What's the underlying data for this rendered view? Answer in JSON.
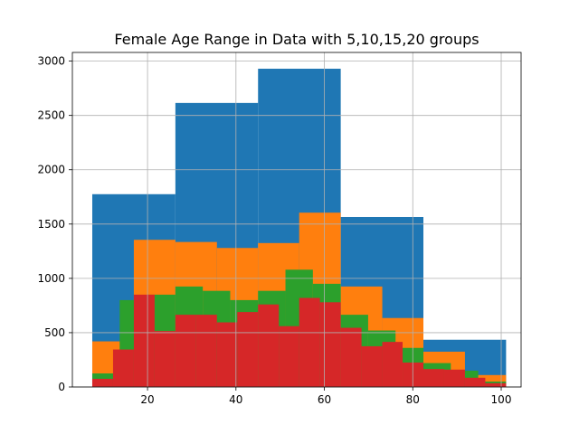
{
  "chart_data": {
    "type": "bar",
    "title": "Female Age Range in Data with 5,10,15,20 groups",
    "xlabel": "",
    "ylabel": "",
    "xlim": [
      3,
      104.5
    ],
    "ylim": [
      0,
      3080
    ],
    "grid": true,
    "xticks": [
      20,
      40,
      60,
      80,
      100
    ],
    "yticks": [
      0,
      500,
      1000,
      1500,
      2000,
      2500,
      3000
    ],
    "series": [
      {
        "color": "#1f77b4",
        "bins": [
          {
            "x0": 7.5,
            "x1": 26.3,
            "value": 1775
          },
          {
            "x0": 26.3,
            "x1": 45.0,
            "value": 2615
          },
          {
            "x0": 45.0,
            "x1": 63.7,
            "value": 2930
          },
          {
            "x0": 63.7,
            "x1": 82.4,
            "value": 1565
          },
          {
            "x0": 82.4,
            "x1": 101.1,
            "value": 435
          }
        ]
      },
      {
        "color": "#ff7f0e",
        "bins": [
          {
            "x0": 7.5,
            "x1": 16.9,
            "value": 420
          },
          {
            "x0": 16.9,
            "x1": 26.3,
            "value": 1355
          },
          {
            "x0": 26.3,
            "x1": 35.7,
            "value": 1335
          },
          {
            "x0": 35.7,
            "x1": 45.0,
            "value": 1280
          },
          {
            "x0": 45.0,
            "x1": 54.3,
            "value": 1325
          },
          {
            "x0": 54.3,
            "x1": 63.7,
            "value": 1605
          },
          {
            "x0": 63.7,
            "x1": 73.1,
            "value": 925
          },
          {
            "x0": 73.1,
            "x1": 82.4,
            "value": 635
          },
          {
            "x0": 82.4,
            "x1": 91.8,
            "value": 325
          },
          {
            "x0": 91.8,
            "x1": 101.1,
            "value": 110
          }
        ]
      },
      {
        "color": "#2ca02c",
        "bins": [
          {
            "x0": 7.5,
            "x1": 13.7,
            "value": 125
          },
          {
            "x0": 13.7,
            "x1": 20.0,
            "value": 800
          },
          {
            "x0": 20.0,
            "x1": 26.3,
            "value": 850
          },
          {
            "x0": 26.3,
            "x1": 32.5,
            "value": 925
          },
          {
            "x0": 32.5,
            "x1": 38.7,
            "value": 885
          },
          {
            "x0": 38.7,
            "x1": 45.0,
            "value": 800
          },
          {
            "x0": 45.0,
            "x1": 51.2,
            "value": 885
          },
          {
            "x0": 51.2,
            "x1": 57.4,
            "value": 1080
          },
          {
            "x0": 57.4,
            "x1": 63.7,
            "value": 950
          },
          {
            "x0": 63.7,
            "x1": 69.9,
            "value": 665
          },
          {
            "x0": 69.9,
            "x1": 76.1,
            "value": 520
          },
          {
            "x0": 76.1,
            "x1": 82.4,
            "value": 360
          },
          {
            "x0": 82.4,
            "x1": 88.6,
            "value": 220
          },
          {
            "x0": 88.6,
            "x1": 94.8,
            "value": 150
          },
          {
            "x0": 94.8,
            "x1": 101.1,
            "value": 50
          }
        ]
      },
      {
        "color": "#d62728",
        "bins": [
          {
            "x0": 7.5,
            "x1": 12.2,
            "value": 75
          },
          {
            "x0": 12.2,
            "x1": 16.9,
            "value": 345
          },
          {
            "x0": 16.9,
            "x1": 21.6,
            "value": 850
          },
          {
            "x0": 21.6,
            "x1": 26.3,
            "value": 515
          },
          {
            "x0": 26.3,
            "x1": 30.9,
            "value": 665
          },
          {
            "x0": 30.9,
            "x1": 35.7,
            "value": 665
          },
          {
            "x0": 35.7,
            "x1": 40.3,
            "value": 595
          },
          {
            "x0": 40.3,
            "x1": 45.0,
            "value": 690
          },
          {
            "x0": 45.0,
            "x1": 49.7,
            "value": 760
          },
          {
            "x0": 49.7,
            "x1": 54.3,
            "value": 560
          },
          {
            "x0": 54.3,
            "x1": 59.0,
            "value": 820
          },
          {
            "x0": 59.0,
            "x1": 63.7,
            "value": 780
          },
          {
            "x0": 63.7,
            "x1": 68.4,
            "value": 545
          },
          {
            "x0": 68.4,
            "x1": 73.1,
            "value": 375
          },
          {
            "x0": 73.1,
            "x1": 77.7,
            "value": 415
          },
          {
            "x0": 77.7,
            "x1": 82.4,
            "value": 225
          },
          {
            "x0": 82.4,
            "x1": 87.1,
            "value": 165
          },
          {
            "x0": 87.1,
            "x1": 91.8,
            "value": 160
          },
          {
            "x0": 91.8,
            "x1": 96.4,
            "value": 85
          },
          {
            "x0": 96.4,
            "x1": 101.1,
            "value": 35
          }
        ]
      }
    ]
  }
}
